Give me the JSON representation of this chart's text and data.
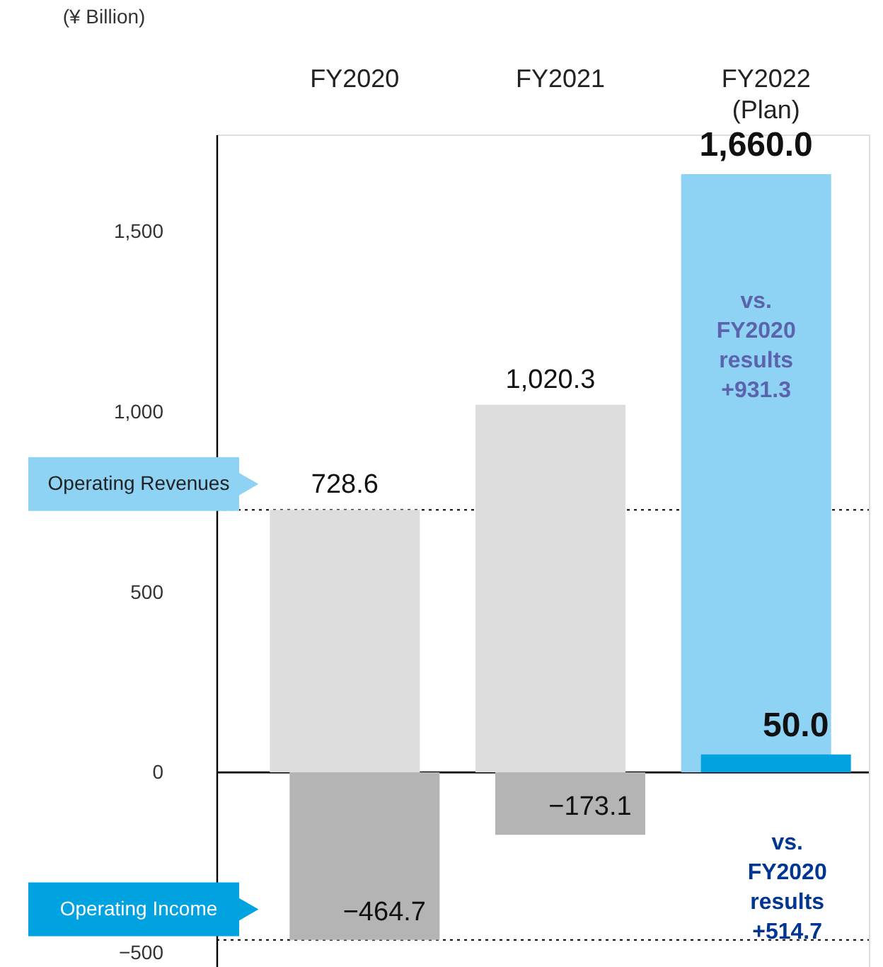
{
  "chart_data": {
    "type": "bar",
    "ylabel": "(¥ Billion)",
    "categories": [
      "FY2020",
      "FY2021",
      "FY2022\n(Plan)"
    ],
    "series": [
      {
        "name": "Operating Revenues",
        "colors": [
          "#dcdddc",
          "#dcdddc",
          "#8fd3f4"
        ],
        "values": [
          728.6,
          1020.3,
          1660.0
        ],
        "value_labels": [
          "728.6",
          "1,020.3",
          "1,660.0"
        ]
      },
      {
        "name": "Operating Income",
        "colors": [
          "#b3b4b3",
          "#b3b4b3",
          "#00a3e0"
        ],
        "values": [
          -464.7,
          -173.1,
          50.0
        ],
        "value_labels": [
          "−464.7",
          "−173.1",
          "50.0"
        ]
      }
    ],
    "ylim": [
      -540,
      1770
    ],
    "yticks": [
      {
        "value": -500,
        "label": "−500"
      },
      0,
      500,
      {
        "value": 1000,
        "label": "1,000"
      },
      {
        "value": 1500,
        "label": "1,500"
      }
    ],
    "grid": false,
    "ref_lines": [
      {
        "axis": "y",
        "value": 0,
        "line_style": "solid",
        "color": "#000000"
      },
      {
        "axis": "y",
        "value": 728.6,
        "line_style": "dotted",
        "color": "#000000"
      },
      {
        "axis": "y",
        "value": -464.7,
        "line_style": "dotted",
        "color": "#000000"
      }
    ],
    "legend": "left",
    "annotations": [
      "vs. FY2020 results +931.3",
      "vs. FY2020 results +514.7"
    ]
  }
}
